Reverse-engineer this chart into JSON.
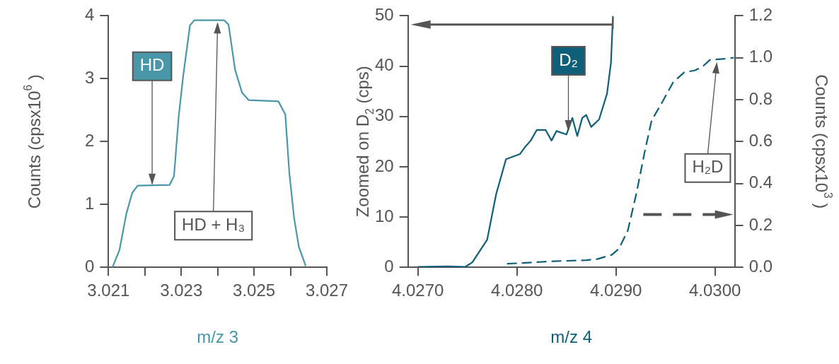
{
  "chart_data": [
    {
      "type": "line",
      "xlabel": "m/z 3",
      "ylabel": "Counts (cpsx10$^{6}$ )",
      "x": [
        3.02111,
        3.0213,
        3.02149,
        3.02165,
        3.0218,
        3.02268,
        3.0228,
        3.02293,
        3.02305,
        3.02324,
        3.02336,
        3.02418,
        3.0243,
        3.02448,
        3.02467,
        3.02485,
        3.02567,
        3.02586,
        3.02597,
        3.0261,
        3.02623,
        3.02642
      ],
      "series": [
        {
          "color": "#4a97aa",
          "line_style": "solid",
          "values": [
            0,
            0.27,
            0.85,
            1.18,
            1.3,
            1.31,
            1.45,
            2.4,
            3.03,
            3.85,
            3.93,
            3.93,
            3.86,
            3.14,
            2.78,
            2.66,
            2.64,
            2.43,
            1.5,
            0.79,
            0.33,
            0.02
          ]
        }
      ],
      "xlim": [
        3.021,
        3.027
      ],
      "xticks": [
        3.021,
        {
          "value": 3.022,
          "label": null
        },
        3.023,
        {
          "value": 3.024,
          "label": null
        },
        3.025,
        {
          "value": 3.026,
          "label": null
        },
        3.027
      ],
      "ylim": [
        0,
        4
      ],
      "yticks": [
        0,
        1,
        2,
        3,
        4
      ],
      "grid": false,
      "legend": false,
      "marker": "none",
      "annotations": [
        {
          "text": "HD",
          "x": 3.0222,
          "y": 1.31
        },
        {
          "text": "HD + H₃",
          "x": 3.024,
          "y": 3.9
        }
      ]
    },
    {
      "type": "line",
      "xlabel": "m/z 4",
      "ylabel": "Zoomed on D$_{2}$ (cps)",
      "y2label": "Counts (cpsx10$^{3}$ )",
      "series": [
        {
          "color": "#0f5f78",
          "line_style": "solid",
          "x": [
            4.027,
            4.0273,
            4.02748,
            4.02755,
            4.0277,
            4.02779,
            4.02789,
            4.02803,
            4.02809,
            4.02814,
            4.0282,
            4.02829,
            4.02835,
            4.0284,
            4.0285,
            4.02856,
            4.02861,
            4.02866,
            4.0287,
            4.02875,
            4.02883,
            4.02891,
            4.02895,
            4.02897
          ],
          "values": [
            0.1,
            0.2,
            0.1,
            1,
            5.5,
            14.5,
            21.5,
            22.5,
            24.1,
            25.2,
            27.3,
            27.3,
            25.2,
            27.1,
            26.4,
            29.7,
            26.1,
            29.7,
            30.3,
            27.9,
            29.4,
            34.5,
            40.7,
            50
          ]
        },
        {
          "color": "#0f5f78",
          "line_style": "dashed",
          "axis": "y2",
          "x": [
            4.0279,
            4.02803,
            4.02837,
            4.0287,
            4.02881,
            4.02896,
            4.02903,
            4.02912,
            4.02921,
            4.02929,
            4.02936,
            4.02947,
            4.02958,
            4.02969,
            4.0298,
            4.02988,
            4.02995,
            4.0301,
            4.03019
          ],
          "values": [
            0.017,
            0.02,
            0.029,
            0.034,
            0.039,
            0.06,
            0.089,
            0.175,
            0.36,
            0.55,
            0.7,
            0.79,
            0.885,
            0.93,
            0.94,
            0.96,
            0.99,
            0.995,
            1.0
          ]
        }
      ],
      "xlim": [
        4.0269,
        4.0302
      ],
      "xticks": [
        {
          "value": 4.027,
          "label": "4.0270"
        },
        {
          "value": 4.028,
          "label": "4.0280"
        },
        {
          "value": 4.029,
          "label": "4.0290"
        },
        {
          "value": 4.03,
          "label": "4.0300"
        }
      ],
      "ylim": [
        0,
        50
      ],
      "yticks": [
        0,
        10,
        20,
        30,
        40,
        50
      ],
      "y2lim": [
        0,
        1.2
      ],
      "y2ticks": [
        {
          "value": 0,
          "label": "0.0"
        },
        {
          "value": 0.2,
          "label": "0.2"
        },
        {
          "value": 0.4,
          "label": "0.4"
        },
        {
          "value": 0.6,
          "label": "0.6"
        },
        {
          "value": 0.8,
          "label": "0.8"
        },
        {
          "value": 1,
          "label": "1.0"
        },
        {
          "value": 1.2,
          "label": "1.2"
        }
      ],
      "grid": false,
      "legend": false,
      "marker": "none",
      "annotations": [
        {
          "text": "D₂",
          "x": 4.02852,
          "y": 27
        },
        {
          "text": "H₂D",
          "x": 4.03002,
          "y": 40.8
        }
      ]
    }
  ]
}
